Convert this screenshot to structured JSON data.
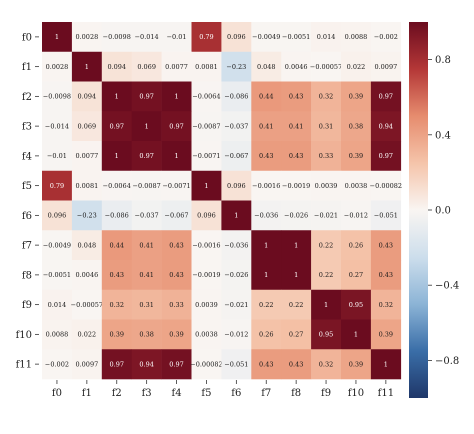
{
  "chart_data": {
    "type": "heatmap",
    "title": "",
    "xlabel": "",
    "ylabel": "",
    "x_labels": [
      "f0",
      "f1",
      "f2",
      "f3",
      "f4",
      "f5",
      "f6",
      "f7",
      "f8",
      "f9",
      "f10",
      "f11"
    ],
    "y_labels": [
      "f0",
      "f1",
      "f2",
      "f3",
      "f4",
      "f5",
      "f6",
      "f7",
      "f8",
      "f9",
      "f10",
      "f11"
    ],
    "values": [
      [
        1,
        0.0028,
        -0.0098,
        -0.014,
        -0.01,
        0.79,
        0.096,
        -0.0049,
        -0.0051,
        0.014,
        0.0088,
        -0.002
      ],
      [
        0.0028,
        1,
        0.094,
        0.069,
        0.0077,
        0.0081,
        -0.23,
        0.048,
        0.0046,
        -0.00057,
        0.022,
        0.0097
      ],
      [
        -0.0098,
        0.094,
        1,
        0.97,
        1,
        -0.0064,
        -0.086,
        0.44,
        0.43,
        0.32,
        0.39,
        0.97
      ],
      [
        -0.014,
        0.069,
        0.97,
        1,
        0.97,
        -0.0087,
        -0.037,
        0.41,
        0.41,
        0.31,
        0.38,
        0.94
      ],
      [
        -0.01,
        0.0077,
        1,
        0.97,
        1,
        -0.0071,
        -0.067,
        0.43,
        0.43,
        0.33,
        0.39,
        0.97
      ],
      [
        0.79,
        0.0081,
        -0.0064,
        -0.0087,
        -0.0071,
        1,
        0.096,
        -0.0016,
        -0.0019,
        0.0039,
        0.0038,
        -0.00082
      ],
      [
        0.096,
        -0.23,
        -0.086,
        -0.037,
        -0.067,
        0.096,
        1,
        -0.036,
        -0.026,
        -0.021,
        -0.012,
        -0.051
      ],
      [
        -0.0049,
        0.048,
        0.44,
        0.41,
        0.43,
        -0.0016,
        -0.036,
        1,
        1,
        0.22,
        0.26,
        0.43
      ],
      [
        -0.0051,
        0.0046,
        0.43,
        0.41,
        0.43,
        -0.0019,
        -0.026,
        1,
        1,
        0.22,
        0.27,
        0.43
      ],
      [
        0.014,
        -0.00057,
        0.32,
        0.31,
        0.33,
        0.0039,
        -0.021,
        0.22,
        0.22,
        1,
        0.95,
        0.32
      ],
      [
        0.0088,
        0.022,
        0.39,
        0.38,
        0.39,
        0.0038,
        -0.012,
        0.26,
        0.27,
        0.95,
        1,
        0.39
      ],
      [
        -0.002,
        0.0097,
        0.97,
        0.94,
        0.97,
        -0.00082,
        -0.051,
        0.43,
        0.43,
        0.32,
        0.39,
        1
      ]
    ],
    "value_range": [
      -1,
      1
    ],
    "colormap": "diverging red-white-blue",
    "colorbar_ticks": [
      "0.8",
      "0.4",
      "0.0",
      "−0.4",
      "−0.8"
    ],
    "colorbar_tick_values": [
      0.8,
      0.4,
      0.0,
      -0.4,
      -0.8
    ],
    "grid": false,
    "colors": {
      "low": "#1f3769",
      "mid": "#f9f5f2",
      "high": "#6b0c1f"
    }
  }
}
